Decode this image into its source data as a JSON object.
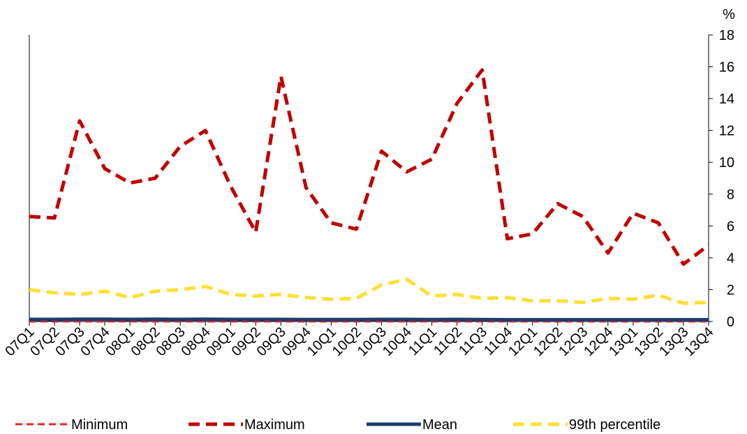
{
  "chart_data": {
    "type": "line",
    "title": "",
    "xlabel": "",
    "ylabel": "",
    "unit": "%",
    "y_axis_side": "right",
    "ylim": [
      0,
      18
    ],
    "yticks": [
      0,
      2,
      4,
      6,
      8,
      10,
      12,
      14,
      16,
      18
    ],
    "grid": false,
    "legend_position": "bottom",
    "categories": [
      "07Q1",
      "07Q2",
      "07Q3",
      "07Q4",
      "08Q1",
      "08Q2",
      "08Q3",
      "08Q4",
      "09Q1",
      "09Q2",
      "09Q3",
      "09Q4",
      "10Q1",
      "10Q2",
      "10Q3",
      "10Q4",
      "11Q1",
      "11Q2",
      "11Q3",
      "11Q4",
      "12Q1",
      "12Q2",
      "12Q3",
      "12Q4",
      "13Q1",
      "13Q2",
      "13Q3",
      "13Q4"
    ],
    "series": [
      {
        "name": "Minimum",
        "color": "#e8232a",
        "style": "dashed-thin",
        "values": [
          0,
          0,
          0,
          0,
          0,
          0,
          0,
          0,
          0,
          0,
          0,
          0,
          0,
          0,
          0,
          0,
          0,
          0,
          0,
          0,
          0,
          0,
          0,
          0,
          0,
          0,
          0,
          0
        ]
      },
      {
        "name": "Maximum",
        "color": "#c00000",
        "style": "dashed-thick",
        "values": [
          6.6,
          6.5,
          12.6,
          9.6,
          8.7,
          9.0,
          11.0,
          12.0,
          8.5,
          5.6,
          15.4,
          8.4,
          6.2,
          5.8,
          10.7,
          9.4,
          10.2,
          13.7,
          15.8,
          5.2,
          5.5,
          7.4,
          6.6,
          4.3,
          6.8,
          6.2,
          3.6,
          4.8
        ]
      },
      {
        "name": "Mean",
        "color": "#1f3d6e",
        "style": "solid",
        "values": [
          0.13,
          0.13,
          0.14,
          0.14,
          0.13,
          0.14,
          0.13,
          0.14,
          0.13,
          0.13,
          0.13,
          0.12,
          0.12,
          0.12,
          0.13,
          0.13,
          0.12,
          0.13,
          0.12,
          0.11,
          0.11,
          0.11,
          0.11,
          0.11,
          0.11,
          0.11,
          0.11,
          0.11
        ]
      },
      {
        "name": "99th percentile",
        "color": "#ffe033",
        "style": "dashed-thick",
        "values": [
          2.0,
          1.8,
          1.7,
          1.9,
          1.5,
          1.9,
          2.0,
          2.2,
          1.7,
          1.6,
          1.7,
          1.5,
          1.4,
          1.45,
          2.3,
          2.65,
          1.6,
          1.7,
          1.45,
          1.5,
          1.3,
          1.3,
          1.2,
          1.45,
          1.4,
          1.65,
          1.15,
          1.2
        ]
      }
    ]
  }
}
